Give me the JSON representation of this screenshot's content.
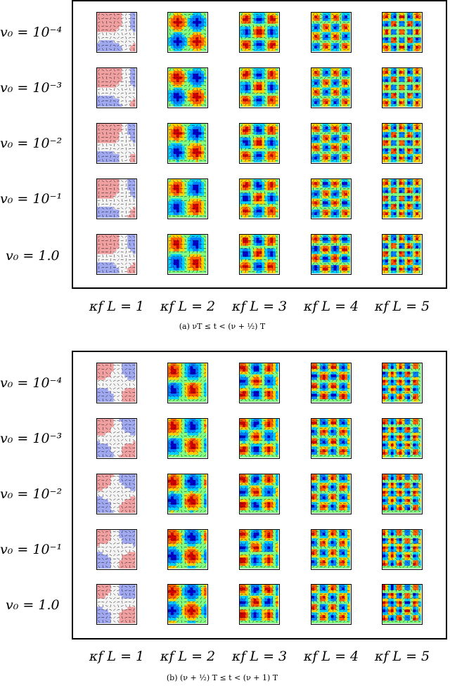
{
  "panels": [
    {
      "id": "a",
      "caption": "(a)  νT ≤ t < (ν + ½) T",
      "row_labels": [
        "v₀ = 10⁻⁴",
        "v₀ = 10⁻³",
        "v₀ = 10⁻²",
        "v₀ = 10⁻¹",
        "v₀ = 1.0"
      ],
      "col_labels": [
        "κf L = 1",
        "κf L = 2",
        "κf L = 3",
        "κf L = 4",
        "κf L = 5"
      ]
    },
    {
      "id": "b",
      "caption": "(b)  (ν + ½) T ≤ t < (ν + 1) T",
      "row_labels": [
        "v₀ = 10⁻⁴",
        "v₀ = 10⁻³",
        "v₀ = 10⁻²",
        "v₀ = 10⁻¹",
        "v₀ = 1.0"
      ],
      "col_labels": [
        "κf L = 1",
        "κf L = 2",
        "κf L = 3",
        "κf L = 4",
        "κf L = 5"
      ]
    }
  ],
  "colors": {
    "colormap": [
      "#0000c8",
      "#0080ff",
      "#00d0ff",
      "#80ff80",
      "#ffd000",
      "#ff6000",
      "#d00000"
    ],
    "arrows": "#000000",
    "frame": "#000000"
  }
}
